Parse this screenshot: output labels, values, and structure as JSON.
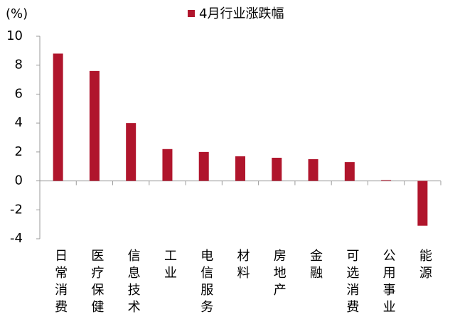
{
  "chart_data": {
    "type": "bar",
    "y_axis_label": "(%)",
    "categories": [
      "日常消费",
      "医疗保健",
      "信息技术",
      "工业",
      "电信服务",
      "材料",
      "房地产",
      "金融",
      "可选消费",
      "公用事业",
      "能源"
    ],
    "series": [
      {
        "name": "4月行业涨跌幅",
        "color": "#b0152c",
        "values": [
          8.8,
          7.6,
          4.0,
          2.2,
          2.0,
          1.7,
          1.6,
          1.5,
          1.3,
          0.05,
          -3.1
        ]
      }
    ],
    "ylim": [
      -4,
      10
    ],
    "yticks": [
      -4,
      -2,
      0,
      2,
      4,
      6,
      8,
      10
    ]
  }
}
